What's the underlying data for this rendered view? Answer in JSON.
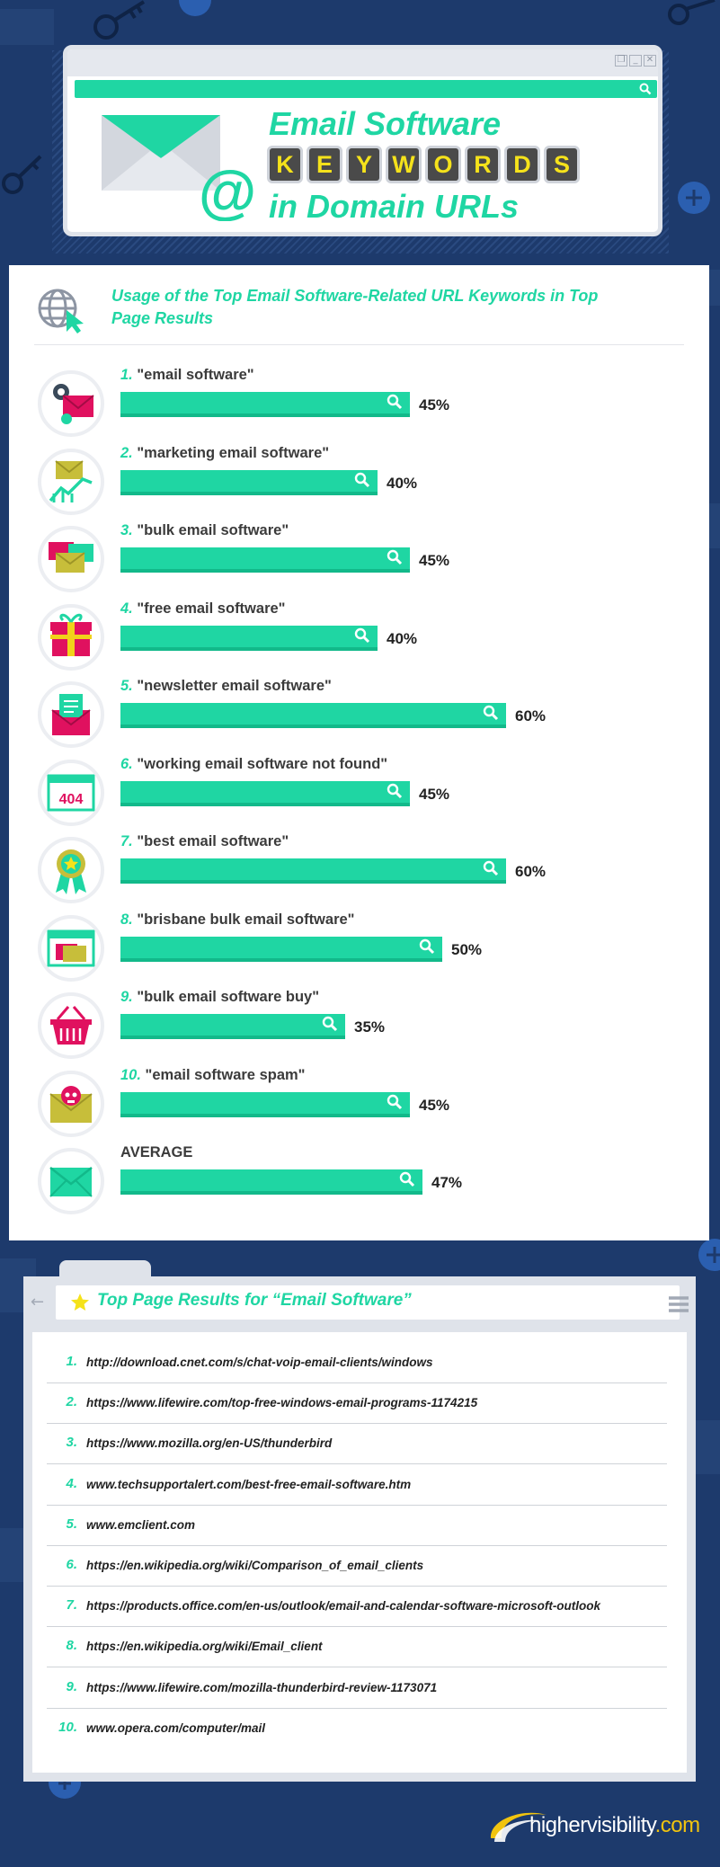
{
  "header": {
    "title_line1": "Email Software",
    "keyword_letters": [
      "K",
      "E",
      "Y",
      "W",
      "O",
      "R",
      "D",
      "S"
    ],
    "title_line3": "in Domain URLs",
    "envelope_symbol": "@",
    "window_controls": [
      "❐",
      "_",
      "✕"
    ]
  },
  "chart_data": {
    "type": "bar",
    "title": "Usage of the Top Email Software-Related URL Keywords in Top Page Results",
    "unit": "%",
    "categories": [
      "\"email software\"",
      "\"marketing email software\"",
      "\"bulk email software\"",
      "\"free email software\"",
      "\"newsletter email software\"",
      "\"working email software not found\"",
      "\"best email software\"",
      "\"brisbane bulk email software\"",
      "\"bulk email software buy\"",
      "\"email software spam\"",
      "AVERAGE"
    ],
    "ranks": [
      "1.",
      "2.",
      "3.",
      "4.",
      "5.",
      "6.",
      "7.",
      "8.",
      "9.",
      "10.",
      ""
    ],
    "values": [
      45,
      40,
      45,
      40,
      60,
      45,
      60,
      50,
      35,
      45,
      47
    ],
    "value_labels": [
      "45%",
      "40%",
      "45%",
      "40%",
      "60%",
      "45%",
      "60%",
      "50%",
      "35%",
      "45%",
      "47%"
    ],
    "icons": [
      "gear-envelope-icon",
      "envelope-growth-chart-icon",
      "bulk-envelopes-icon",
      "gift-box-icon",
      "newsletter-envelope-icon",
      "error-404-icon",
      "award-ribbon-icon",
      "browser-envelope-icon",
      "shopping-basket-icon",
      "skull-envelope-icon",
      "envelope-icon"
    ],
    "colors": {
      "bar": "#1fd6a3",
      "bar_edge": "#12b98a",
      "accent": "#e0115f",
      "secondary": "#c7be3a"
    }
  },
  "results": {
    "title": "Top Page Results for “Email Software”",
    "ranks": [
      "1.",
      "2.",
      "3.",
      "4.",
      "5.",
      "6.",
      "7.",
      "8.",
      "9.",
      "10."
    ],
    "urls": [
      "http://download.cnet.com/s/chat-voip-email-clients/windows",
      "https://www.lifewire.com/top-free-windows-email-programs-1174215",
      "https://www.mozilla.org/en-US/thunderbird",
      "www.techsupportalert.com/best-free-email-software.htm",
      "www.emclient.com",
      "https://en.wikipedia.org/wiki/Comparison_of_email_clients",
      "https://products.office.com/en-us/outlook/email-and-calendar-software-microsoft-outlook",
      "https://en.wikipedia.org/wiki/Email_client",
      "https://www.lifewire.com/mozilla-thunderbird-review-1173071",
      "www.opera.com/computer/mail"
    ],
    "back_arrow": "←"
  },
  "logo": {
    "name": "highervisibility",
    "suffix": ".com"
  },
  "colors": {
    "background": "#1d3a6c",
    "accent": "#1fd6a3",
    "tile_letter": "#f5e21b"
  }
}
